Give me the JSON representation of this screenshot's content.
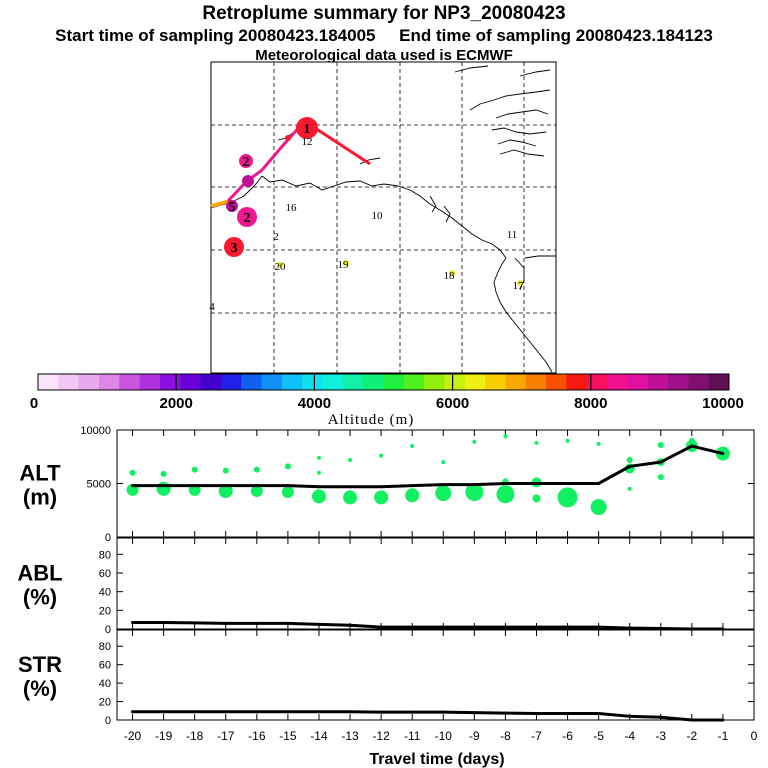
{
  "header": {
    "title": "Retroplume summary for NP3_20080423",
    "start": "Start time of sampling 20080423.184005",
    "end": "End time of sampling 20080423.184123",
    "met": "Meteorological data used is ECMWF"
  },
  "colorbar": {
    "label": "Altitude (m)",
    "ticks": [
      "0",
      "2000",
      "4000",
      "6000",
      "8000",
      "10000"
    ],
    "colors": [
      "#f9e4f9",
      "#f2c8f2",
      "#e9a8ee",
      "#dd88e8",
      "#cc55e0",
      "#b030e0",
      "#8a10e0",
      "#6a00d8",
      "#4400cc",
      "#2020e8",
      "#1060f0",
      "#1090f8",
      "#10c0f8",
      "#10e0f0",
      "#10f0d8",
      "#10f0a8",
      "#10f078",
      "#20f040",
      "#50f020",
      "#90f010",
      "#c8f010",
      "#f0f010",
      "#f8d000",
      "#f8a800",
      "#f88000",
      "#f85000",
      "#f81810",
      "#f81060",
      "#f01090",
      "#e010a0",
      "#c01098",
      "#a01088",
      "#801070",
      "#601050"
    ]
  },
  "map": {
    "plume_labels": [
      {
        "text": "1",
        "x": 307,
        "y": 128
      },
      {
        "text": "2",
        "x": 246,
        "y": 161
      },
      {
        "text": "2",
        "x": 247,
        "y": 217
      },
      {
        "text": "3",
        "x": 234,
        "y": 247
      },
      {
        "text": "5",
        "x": 232,
        "y": 206
      }
    ],
    "cluster_labels": [
      {
        "text": "12",
        "x": 307,
        "y": 141
      },
      {
        "text": "16",
        "x": 291,
        "y": 207
      },
      {
        "text": "10",
        "x": 377,
        "y": 215
      },
      {
        "text": "11",
        "x": 512,
        "y": 234
      },
      {
        "text": "2",
        "x": 276,
        "y": 236
      },
      {
        "text": "20",
        "x": 280,
        "y": 266
      },
      {
        "text": "19",
        "x": 343,
        "y": 264
      },
      {
        "text": "18",
        "x": 449,
        "y": 275
      },
      {
        "text": "17",
        "x": 518,
        "y": 285
      },
      {
        "text": "4",
        "x": 212,
        "y": 306
      }
    ]
  },
  "chart_data": [
    {
      "type": "line",
      "panel": "ALT",
      "ylabel_line1": "ALT",
      "ylabel_line2": "(m)",
      "ylim": [
        0,
        10000
      ],
      "yticks": [
        "0",
        "5000",
        "10000"
      ],
      "x": [
        -20,
        -19,
        -18,
        -17,
        -16,
        -15,
        -14,
        -13,
        -12,
        -11,
        -10,
        -9,
        -8,
        -7,
        -6,
        -5,
        -4,
        -3,
        -2,
        -1
      ],
      "values": [
        4800,
        4800,
        4800,
        4800,
        4800,
        4800,
        4700,
        4700,
        4700,
        4800,
        4900,
        4900,
        5000,
        5000,
        5000,
        5000,
        6600,
        7000,
        8500,
        7800
      ]
    },
    {
      "type": "line",
      "panel": "ABL",
      "ylabel_line1": "ABL",
      "ylabel_line2": "(%)",
      "ylim": [
        0,
        90
      ],
      "yticks": [
        "0",
        "20",
        "40",
        "60",
        "80"
      ],
      "x": [
        -20,
        -19,
        -18,
        -17,
        -16,
        -15,
        -14,
        -13,
        -12,
        -11,
        -10,
        -9,
        -8,
        -7,
        -6,
        -5,
        -4,
        -3,
        -2,
        -1
      ],
      "values": [
        7,
        7,
        6.5,
        6,
        6,
        6,
        5,
        4,
        2,
        2,
        2,
        2,
        2,
        2,
        2,
        2,
        1,
        0.5,
        0,
        0
      ]
    },
    {
      "type": "line",
      "panel": "STR",
      "ylabel_line1": "STR",
      "ylabel_line2": "(%)",
      "ylim": [
        0,
        90
      ],
      "yticks": [
        "0",
        "20",
        "40",
        "60",
        "80"
      ],
      "xlabel": "Travel time (days)",
      "xticks": [
        "-20",
        "-19",
        "-18",
        "-17",
        "-16",
        "-15",
        "-14",
        "-13",
        "-12",
        "-11",
        "-10",
        "-9",
        "-8",
        "-7",
        "-6",
        "-5",
        "-4",
        "-3",
        "-2",
        "-1",
        "0"
      ],
      "x": [
        -20,
        -19,
        -18,
        -17,
        -16,
        -15,
        -14,
        -13,
        -12,
        -11,
        -10,
        -9,
        -8,
        -7,
        -6,
        -5,
        -4,
        -3,
        -2,
        -1
      ],
      "values": [
        9,
        9,
        9,
        9,
        9,
        9,
        9,
        9,
        8.5,
        8.5,
        8.5,
        8,
        7.5,
        7,
        7,
        7,
        4,
        3,
        0,
        0
      ]
    }
  ]
}
